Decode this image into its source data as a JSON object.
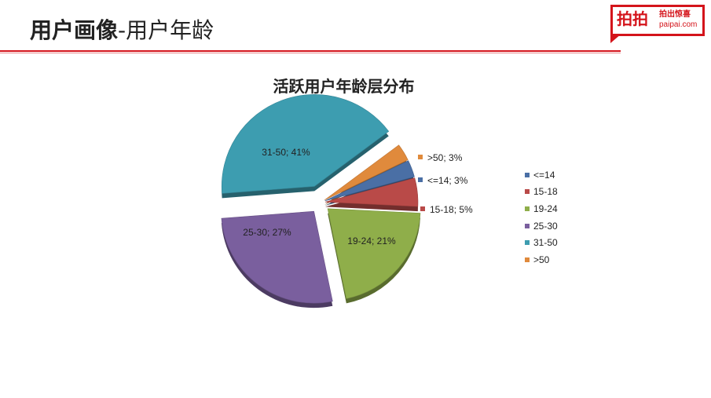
{
  "slide": {
    "title_bold": "用户画像",
    "title_rest": "-用户年龄"
  },
  "logo": {
    "cn": "拍拍",
    "tagline": "拍出惊喜",
    "domain": "paipai.com",
    "color": "#d4141b"
  },
  "chart_data": {
    "type": "pie",
    "title": "活跃用户年龄层分布",
    "exploded": true,
    "style": "3d",
    "legend_position": "right",
    "slices": [
      {
        "name": "<=14",
        "value": 3,
        "label": "<=14; 3%",
        "color": "#4a6fa5"
      },
      {
        "name": "15-18",
        "value": 5,
        "label": "15-18; 5%",
        "color": "#b94a48"
      },
      {
        "name": "19-24",
        "value": 21,
        "label": "19-24; 21%",
        "color": "#8fae4a"
      },
      {
        "name": "25-30",
        "value": 27,
        "label": "25-30; 27%",
        "color": "#7a5f9e"
      },
      {
        "name": "31-50",
        "value": 41,
        "label": "31-50; 41%",
        "color": "#3d9db0"
      },
      {
        "name": ">50",
        "value": 3,
        "label": ">50; 3%",
        "color": "#e08a3c"
      }
    ]
  }
}
